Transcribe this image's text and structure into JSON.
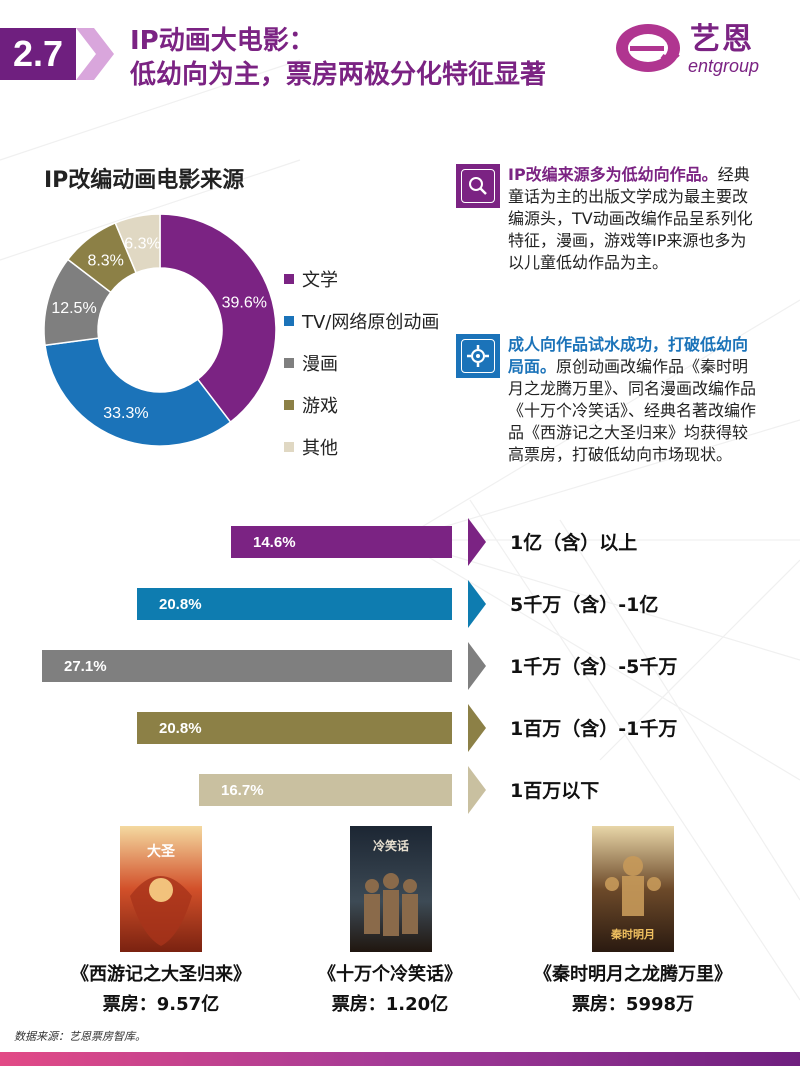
{
  "header": {
    "section_number": "2.7",
    "title_line1": "IP动画大电影：",
    "title_line2": "低幼向为主，票房两极分化特征显著",
    "logo_cn": "艺恩",
    "logo_en": "entgroup"
  },
  "donut": {
    "title": "IP改编动画电影来源"
  },
  "chart_data": [
    {
      "type": "pie",
      "title": "IP改编动画电影来源",
      "categories": [
        "文学",
        "TV/网络原创动画",
        "漫画",
        "游戏",
        "其他"
      ],
      "values": [
        39.6,
        33.3,
        12.5,
        8.3,
        6.3
      ],
      "labels": [
        "39.6%",
        "33.3%",
        "12.5%",
        "8.3%",
        "6.3%"
      ],
      "colors": [
        "#7b2383",
        "#1b73b9",
        "#7f7f7f",
        "#8c8046",
        "#e0d8c3"
      ],
      "legend_position": "right"
    },
    {
      "type": "bar",
      "categories": [
        "1亿（含）以上",
        "5千万（含）-1亿",
        "1千万（含）-5千万",
        "1百万（含）-1千万",
        "1百万以下"
      ],
      "values": [
        14.6,
        20.8,
        27.1,
        20.8,
        16.7
      ],
      "labels": [
        "14.6%",
        "20.8%",
        "27.1%",
        "20.8%",
        "16.7%"
      ],
      "colors": [
        "#7b2383",
        "#0e7cb0",
        "#7f7f7f",
        "#8c8046",
        "#c9c0a0"
      ]
    }
  ],
  "info": [
    {
      "icon": "magnifier-icon",
      "color": "#7b2383",
      "lead": "IP改编来源多为低幼向作品。",
      "body": "经典童话为主的出版文学成为最主要改编源头，TV动画改编作品呈系列化特征，漫画，游戏等IP来源也多为以儿童低幼作品为主。"
    },
    {
      "icon": "gear-icon",
      "color": "#1b73b9",
      "lead": "成人向作品试水成功，打破低幼向局面。",
      "body": "原创动画改编作品《秦时明月之龙腾万里》、同名漫画改编作品《十万个冷笑话》、经典名著改编作品《西游记之大圣归来》均获得较高票房，打破低幼向市场现状。"
    }
  ],
  "posters": [
    {
      "title": "《西游记之大圣归来》",
      "box_office": "票房：9.57亿"
    },
    {
      "title": "《十万个冷笑话》",
      "box_office": "票房：1.20亿"
    },
    {
      "title": "《秦时明月之龙腾万里》",
      "box_office": "票房：5998万"
    }
  ],
  "footer": {
    "source": "数据来源：艺恩票房智库。"
  }
}
